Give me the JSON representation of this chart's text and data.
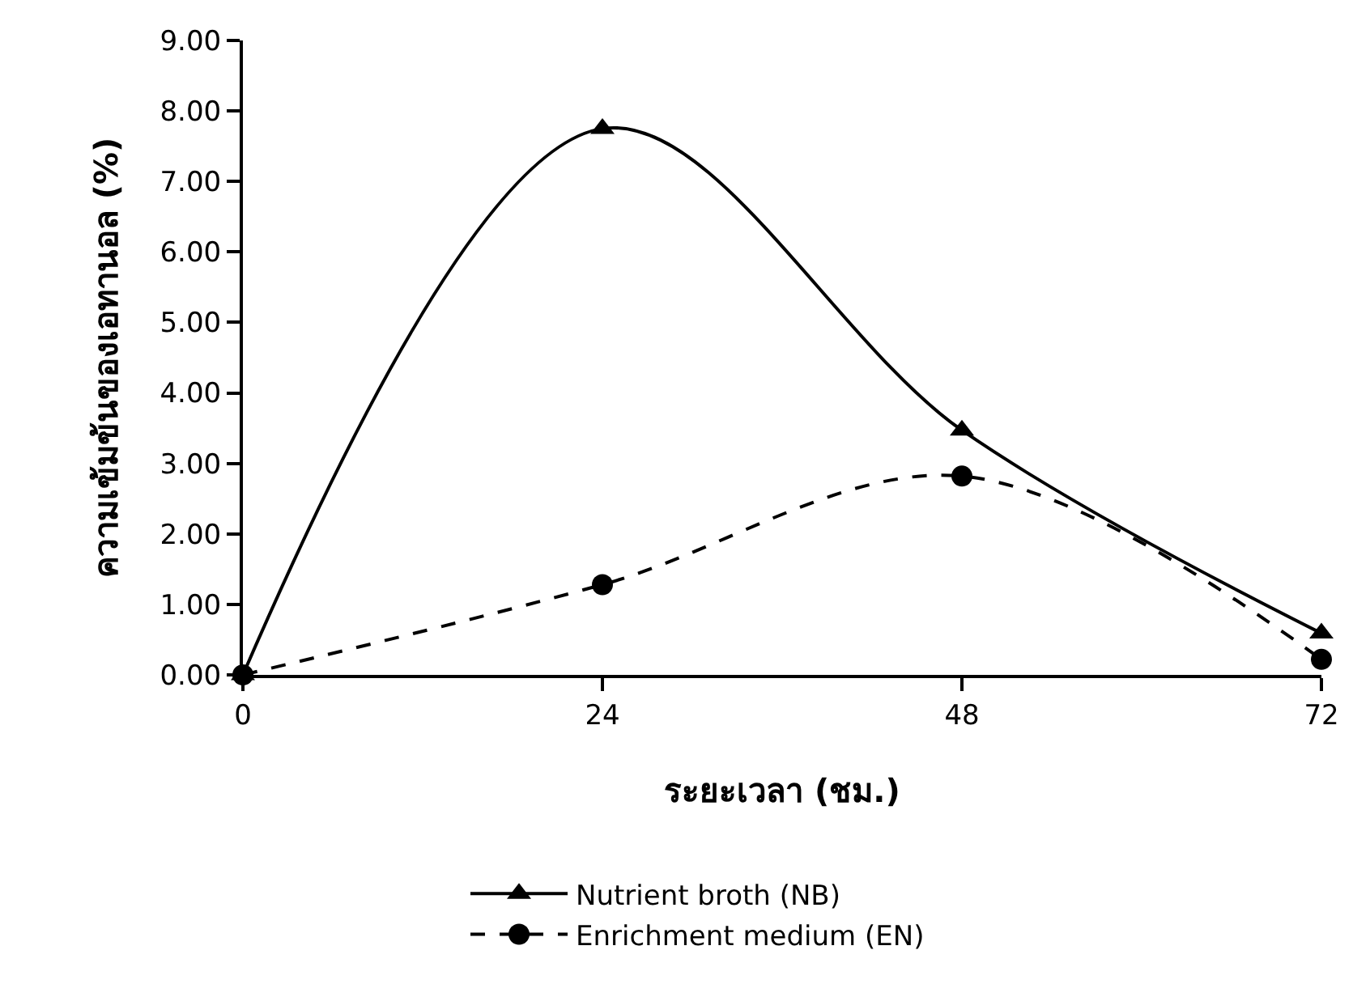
{
  "chart_data": {
    "type": "line",
    "xlabel": "ระยะเวลา (ชม.)",
    "ylabel": "ความเข้มข้นของเอทานอล (%)",
    "x": [
      0,
      24,
      48,
      72
    ],
    "xlim": [
      0,
      72
    ],
    "xticks": [
      0,
      24,
      48,
      72
    ],
    "ylim": [
      0,
      9
    ],
    "yticks": [
      {
        "value": 0,
        "label": "0.00"
      },
      {
        "value": 1,
        "label": "1.00"
      },
      {
        "value": 2,
        "label": "2.00"
      },
      {
        "value": 3,
        "label": "3.00"
      },
      {
        "value": 4,
        "label": "4.00"
      },
      {
        "value": 5,
        "label": "5.00"
      },
      {
        "value": 6,
        "label": "6.00"
      },
      {
        "value": 7,
        "label": "7.00"
      },
      {
        "value": 8,
        "label": "8.00"
      },
      {
        "value": 9,
        "label": "9.00"
      }
    ],
    "legend": "bottom",
    "series": [
      {
        "name": "Nutrient broth (NB)",
        "color": "#000000",
        "marker": "triangle",
        "line_style": "solid",
        "values": [
          0,
          7.75,
          3.47,
          0.59
        ]
      },
      {
        "name": "Enrichment medium (EN)",
        "color": "#000000",
        "marker": "circle",
        "line_style": "dashed",
        "values": [
          0,
          1.28,
          2.82,
          0.22
        ]
      }
    ]
  }
}
